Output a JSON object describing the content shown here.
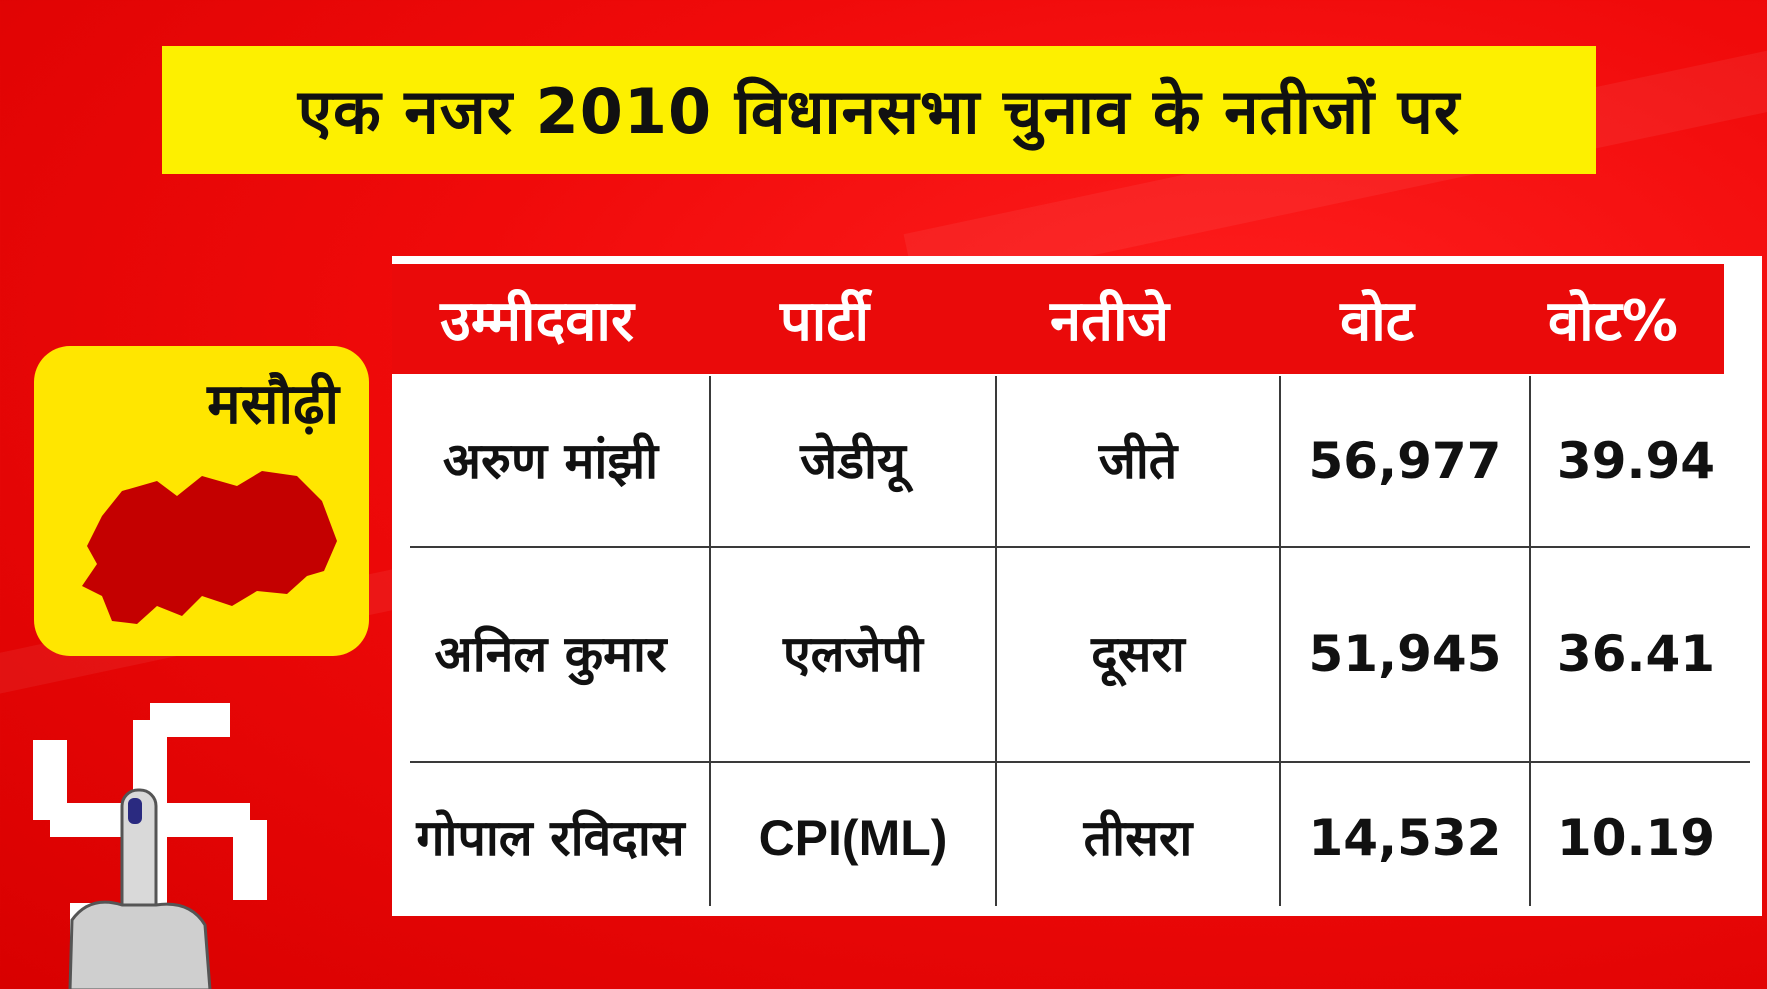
{
  "headline": "एक नजर 2010 विधानसभा चुनाव के नतीजों पर",
  "constituency": "मसौढ़ी",
  "table": {
    "headers": [
      "उम्मीदवार",
      "पार्टी",
      "नतीजे",
      "वोट",
      "वोट%"
    ],
    "rows": [
      {
        "candidate": "अरुण मांझी",
        "party": "जेडीयू",
        "result": "जीते",
        "votes": "56,977",
        "vote_pct": "39.94"
      },
      {
        "candidate": "अनिल कुमार",
        "party": "एलजेपी",
        "result": "दूसरा",
        "votes": "51,945",
        "vote_pct": "36.41"
      },
      {
        "candidate": "गोपाल रविदास",
        "party": "CPI(ML)",
        "result": "तीसरा",
        "votes": "14,532",
        "vote_pct": "10.19"
      }
    ]
  },
  "colors": {
    "background": "#f00a0a",
    "banner": "#fdf000",
    "header_row": "#ea0a0a",
    "map_fill": "#c40000"
  },
  "icons": [
    "constituency-map-icon",
    "election-swastika-symbol",
    "voting-finger-icon"
  ]
}
